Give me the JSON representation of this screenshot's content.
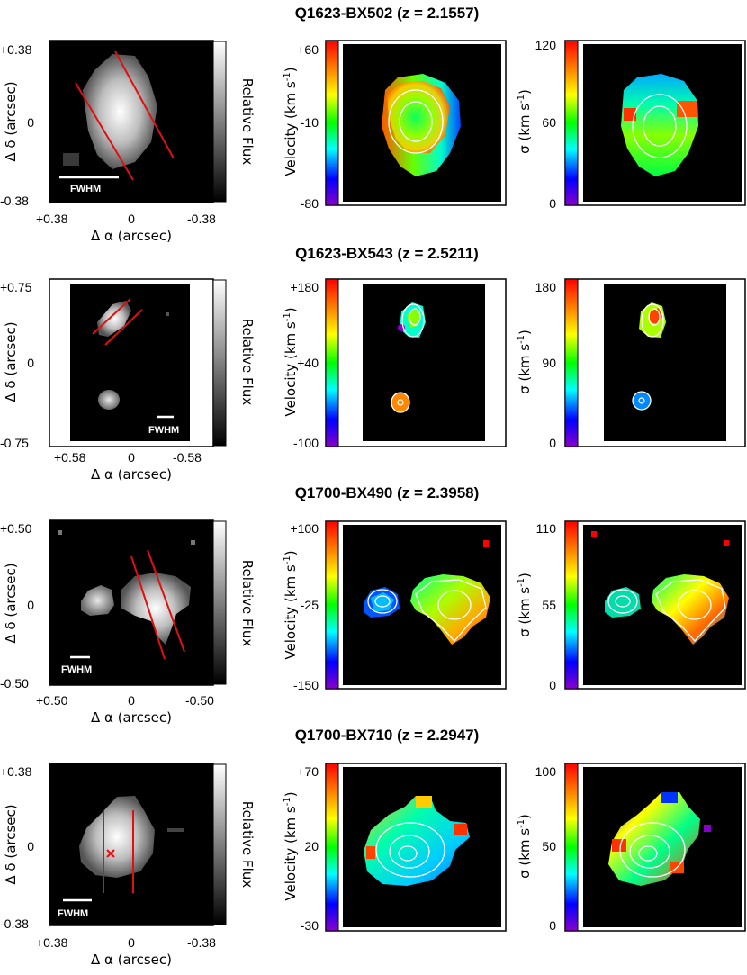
{
  "figure": {
    "rows": [
      {
        "title": "Q1623-BX502 (z = 2.1557)",
        "flux": {
          "ytop": "+0.38",
          "ymid": "0",
          "ybot": "-0.38",
          "xleft": "+0.38",
          "xmid": "0",
          "xright": "-0.38",
          "cbar_label": "Relative Flux",
          "scale_label": "FWHM"
        },
        "velocity": {
          "top": "+60",
          "mid": "-10",
          "bot": "-80"
        },
        "dispersion": {
          "top": "120",
          "mid": "60",
          "bot": "0"
        }
      },
      {
        "title": "Q1623-BX543 (z = 2.5211)",
        "flux": {
          "ytop": "+0.75",
          "ymid": "0",
          "ybot": "-0.75",
          "xleft": "+0.58",
          "xmid": "0",
          "xright": "-0.58",
          "cbar_label": "Relative Flux",
          "scale_label": "FWHM"
        },
        "velocity": {
          "top": "+180",
          "mid": "+40",
          "bot": "-100"
        },
        "dispersion": {
          "top": "180",
          "mid": "90",
          "bot": "0"
        }
      },
      {
        "title": "Q1700-BX490 (z = 2.3958)",
        "flux": {
          "ytop": "+0.50",
          "ymid": "0",
          "ybot": "-0.50",
          "xleft": "+0.50",
          "xmid": "0",
          "xright": "-0.50",
          "cbar_label": "Relative Flux",
          "scale_label": "FWHM"
        },
        "velocity": {
          "top": "+100",
          "mid": "-25",
          "bot": "-150"
        },
        "dispersion": {
          "top": "110",
          "mid": "55",
          "bot": "0"
        }
      },
      {
        "title": "Q1700-BX710 (z = 2.2947)",
        "flux": {
          "ytop": "+0.38",
          "ymid": "0",
          "ybot": "-0.38",
          "xleft": "+0.38",
          "xmid": "0",
          "xright": "-0.38",
          "cbar_label": "Relative Flux",
          "scale_label": "FWHM"
        },
        "velocity": {
          "top": "+70",
          "mid": "20",
          "bot": "-30"
        },
        "dispersion": {
          "top": "100",
          "mid": "50",
          "bot": "0"
        }
      }
    ],
    "labels": {
      "ylabel_flux": "Δ δ (arcsec)",
      "xlabel_flux": "Δ α (arcsec)",
      "ylabel_velocity": "Velocity (km s",
      "ylabel_dispersion": "σ (km s",
      "unit_exponent": "-1"
    },
    "colors": {
      "flux_cbar": [
        "#000000",
        "#ffffff"
      ],
      "rainbow_cbar": [
        "#ff0000",
        "#ff8800",
        "#ffff00",
        "#00ff00",
        "#00ffff",
        "#0000ff",
        "#8800cc"
      ],
      "slit_lines": "#e01010",
      "contours": "#ffffff",
      "background_map": "#000000"
    }
  }
}
